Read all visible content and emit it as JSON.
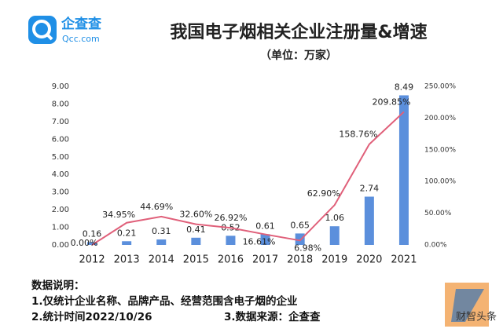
{
  "logo": {
    "name": "企查查",
    "site": "Qcc.com"
  },
  "chart_data": {
    "type": "bar",
    "title": "我国电子烟相关企业注册量&增速",
    "subtitle": "（单位：万家）",
    "categories": [
      "2012",
      "2013",
      "2014",
      "2015",
      "2016",
      "2017",
      "2018",
      "2019",
      "2020",
      "2021"
    ],
    "series": [
      {
        "type": "bar",
        "color": "#5b8fdc",
        "values": [
          0.16,
          0.21,
          0.31,
          0.41,
          0.52,
          0.61,
          0.65,
          1.06,
          2.74,
          8.49
        ]
      },
      {
        "type": "line",
        "axis": "y2",
        "color": "#e0607a",
        "values": [
          0.0,
          34.95,
          44.69,
          32.6,
          26.92,
          16.61,
          6.98,
          62.9,
          158.76,
          209.85
        ],
        "value_labels": [
          "0.00%",
          "34.95%",
          "44.69%",
          "32.60%",
          "26.92%",
          "16.61%",
          "6.98%",
          "62.90%",
          "158.76%",
          "209.85%"
        ]
      }
    ],
    "ylim": [
      0,
      9
    ],
    "yticks": [
      {
        "value": 0,
        "label": "0.00"
      },
      {
        "value": 1,
        "label": "1.00"
      },
      {
        "value": 2,
        "label": "2.00"
      },
      {
        "value": 3,
        "label": "3.00"
      },
      {
        "value": 4,
        "label": "4.00"
      },
      {
        "value": 5,
        "label": "5.00"
      },
      {
        "value": 6,
        "label": "6.00"
      },
      {
        "value": 7,
        "label": "7.00"
      },
      {
        "value": 8,
        "label": "8.00"
      },
      {
        "value": 9,
        "label": "9.00"
      }
    ],
    "y2lim": [
      0,
      250
    ],
    "y2ticks": [
      {
        "value": 0,
        "label": "0.00%"
      },
      {
        "value": 50,
        "label": "50.00%"
      },
      {
        "value": 100,
        "label": "100.00%"
      },
      {
        "value": 150,
        "label": "150.00%"
      },
      {
        "value": 200,
        "label": "200.00%"
      },
      {
        "value": 250,
        "label": "250.00%"
      }
    ]
  },
  "notes": {
    "heading": "数据说明：",
    "line1": "1.仅统计企业名称、品牌产品、经营范围含电子烟的企业",
    "line2": "2.统计时间2022/10/26",
    "line3": "3.数据来源：企查查"
  },
  "watermark": "财智头条"
}
